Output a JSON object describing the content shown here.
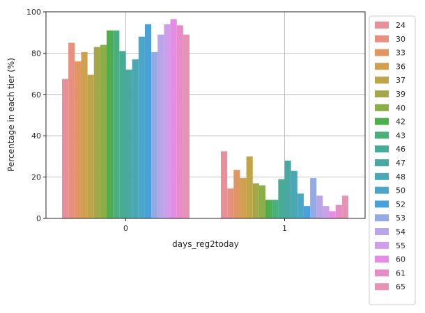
{
  "chart_data": {
    "type": "bar",
    "xlabel": "days_reg2today",
    "ylabel": "Percentage in each tier (%)",
    "categories": [
      "0",
      "1"
    ],
    "ylim": [
      0,
      100
    ],
    "yticks": [
      "0",
      "20",
      "40",
      "60",
      "80",
      "100"
    ],
    "grid": true,
    "legend_position": "right-outside",
    "series": [
      {
        "name": "24",
        "color": "#e8909a",
        "values": [
          67.5,
          32.5
        ]
      },
      {
        "name": "30",
        "color": "#e89080",
        "values": [
          85.0,
          14.5
        ]
      },
      {
        "name": "33",
        "color": "#df9660",
        "values": [
          76.0,
          23.5
        ]
      },
      {
        "name": "36",
        "color": "#cfa04e",
        "values": [
          80.5,
          19.5
        ]
      },
      {
        "name": "37",
        "color": "#bfa54a",
        "values": [
          69.5,
          30.0
        ]
      },
      {
        "name": "39",
        "color": "#a4a84a",
        "values": [
          83.0,
          17.0
        ]
      },
      {
        "name": "40",
        "color": "#8aae48",
        "values": [
          84.0,
          16.0
        ]
      },
      {
        "name": "42",
        "color": "#4caf4c",
        "values": [
          91.0,
          9.0
        ]
      },
      {
        "name": "43",
        "color": "#4aaf7c",
        "values": [
          91.0,
          9.0
        ]
      },
      {
        "name": "46",
        "color": "#48ab96",
        "values": [
          81.0,
          19.0
        ]
      },
      {
        "name": "47",
        "color": "#4aa8a2",
        "values": [
          72.0,
          28.0
        ]
      },
      {
        "name": "48",
        "color": "#4aa8b4",
        "values": [
          77.0,
          23.0
        ]
      },
      {
        "name": "50",
        "color": "#4aa8c6",
        "values": [
          88.0,
          12.0
        ]
      },
      {
        "name": "52",
        "color": "#4aa0d8",
        "values": [
          94.0,
          6.0
        ]
      },
      {
        "name": "53",
        "color": "#94aae4",
        "values": [
          80.5,
          19.5
        ]
      },
      {
        "name": "54",
        "color": "#b8a6e8",
        "values": [
          89.0,
          11.0
        ]
      },
      {
        "name": "55",
        "color": "#cf9ee8",
        "values": [
          94.0,
          6.0
        ]
      },
      {
        "name": "60",
        "color": "#e58ce4",
        "values": [
          96.5,
          3.5
        ]
      },
      {
        "name": "61",
        "color": "#e88cc8",
        "values": [
          93.5,
          6.5
        ]
      },
      {
        "name": "65",
        "color": "#e892b4",
        "values": [
          89.0,
          11.0
        ]
      }
    ]
  }
}
